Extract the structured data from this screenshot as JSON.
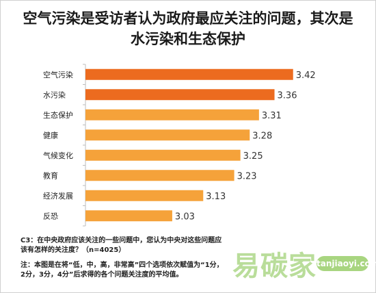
{
  "title": "空气污染是受访者认为政府最应关注的问题，其次是水污染和生态保护",
  "notes": {
    "question": "C3：在中央政府应该关注的一些问题中，您认为中央对这些问题应该有怎样的关注度？（n=4025）",
    "footnote": "注：本图是在将“低，中，高，非常高”四个选项依次赋值为“1分，2分，3分，4分”后求得的各个问题关注度的平均值。"
  },
  "watermark": {
    "logo": "易碳家",
    "badge": "tanjiaoyi.com"
  },
  "colors": {
    "highlight": "#ec6b1f",
    "normal": "#f5a23a",
    "axis": "#bdbdbd"
  },
  "chart_data": {
    "type": "bar",
    "orientation": "horizontal",
    "categories": [
      "空气污染",
      "水污染",
      "生态保护",
      "健康",
      "气候变化",
      "教育",
      "经济发展",
      "反恐"
    ],
    "values": [
      3.42,
      3.36,
      3.31,
      3.28,
      3.25,
      3.23,
      3.13,
      3.03
    ],
    "value_labels": [
      "3.42",
      "3.36",
      "3.31",
      "3.28",
      "3.25",
      "3.23",
      "3.13",
      "3.03"
    ],
    "highlighted": [
      true,
      true,
      false,
      false,
      false,
      false,
      false,
      false
    ],
    "xlim": [
      2.75,
      3.5
    ],
    "grid": false
  }
}
